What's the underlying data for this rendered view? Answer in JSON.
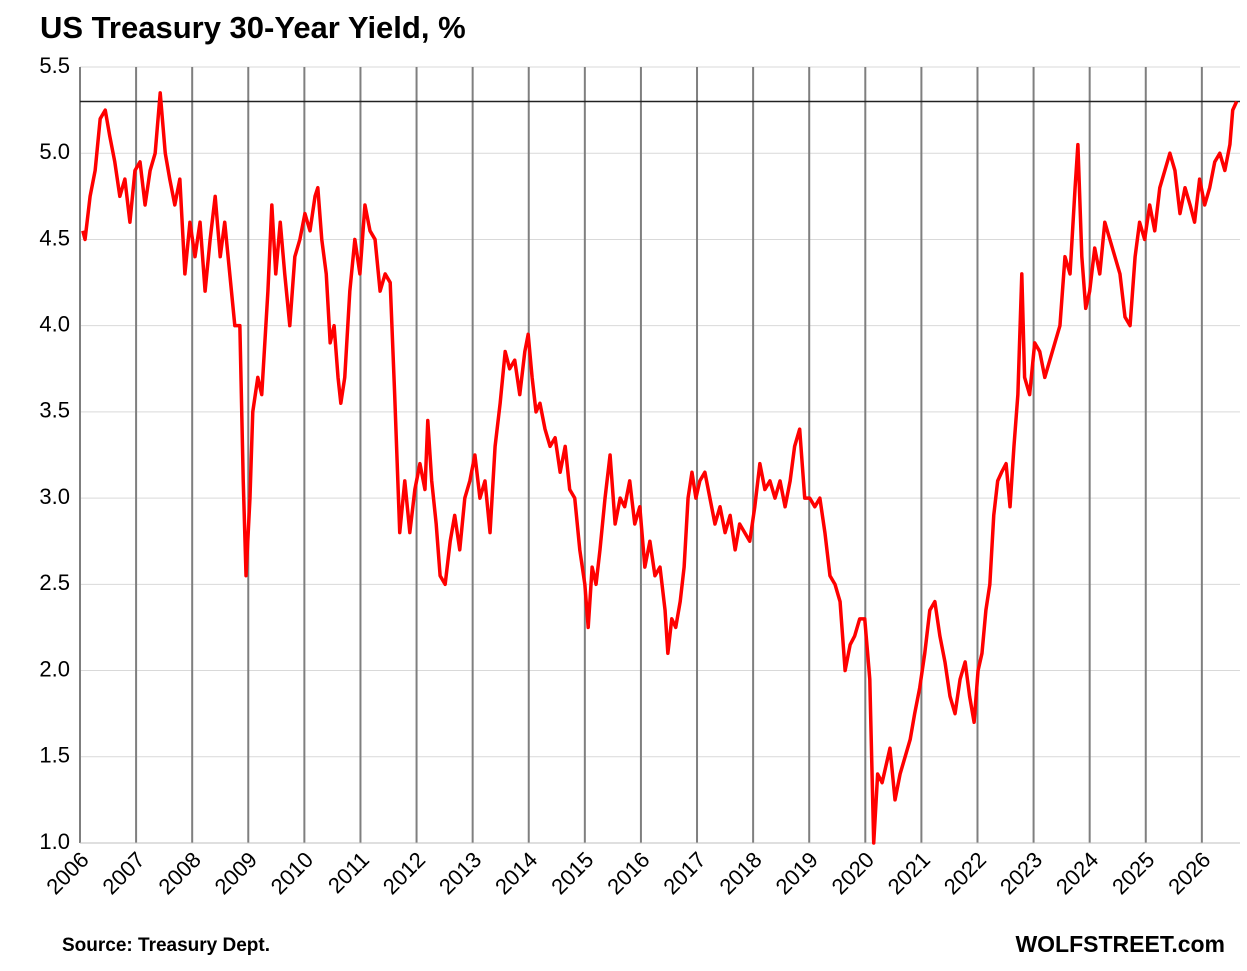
{
  "chart_data": {
    "type": "line",
    "title": "US Treasury 30-Year Yield, %",
    "source": "Source: Treasury Dept.",
    "watermark": "WOLFSTREET.com",
    "color": "#ff0000",
    "reference_line": 5.3,
    "reference_color": "#222222",
    "grid": true,
    "xlim": [
      2006,
      2026.68
    ],
    "xticks": [
      2006,
      2007,
      2008,
      2009,
      2010,
      2011,
      2012,
      2013,
      2014,
      2015,
      2016,
      2017,
      2018,
      2019,
      2020,
      2021,
      2022,
      2023,
      2024,
      2025,
      2026
    ],
    "ylim": [
      1,
      5.5
    ],
    "yticks": [
      {
        "value": 1,
        "label": "1.0"
      },
      {
        "value": 1.5,
        "label": "1.5"
      },
      {
        "value": 2,
        "label": "2.0"
      },
      {
        "value": 2.5,
        "label": "2.5"
      },
      {
        "value": 3,
        "label": "3.0"
      },
      {
        "value": 3.5,
        "label": "3.5"
      },
      {
        "value": 4,
        "label": "4.0"
      },
      {
        "value": 4.5,
        "label": "4.5"
      },
      {
        "value": 5,
        "label": "5.0"
      },
      {
        "value": 5.5,
        "label": "5.5"
      }
    ],
    "x": [
      2006.05,
      2006.09,
      2006.18,
      2006.27,
      2006.36,
      2006.45,
      2006.53,
      2006.62,
      2006.71,
      2006.8,
      2006.89,
      2006.98,
      2007.07,
      2007.16,
      2007.25,
      2007.34,
      2007.43,
      2007.52,
      2007.6,
      2007.69,
      2007.78,
      2007.87,
      2007.96,
      2008.05,
      2008.14,
      2008.23,
      2008.32,
      2008.41,
      2008.5,
      2008.58,
      2008.67,
      2008.76,
      2008.85,
      2008.91,
      2008.96,
      2009.03,
      2009.08,
      2009.17,
      2009.24,
      2009.35,
      2009.42,
      2009.49,
      2009.57,
      2009.65,
      2009.74,
      2009.83,
      2009.92,
      2010.01,
      2010.1,
      2010.19,
      2010.24,
      2010.31,
      2010.39,
      2010.46,
      2010.53,
      2010.6,
      2010.65,
      2010.72,
      2010.81,
      2010.9,
      2010.99,
      2011.08,
      2011.17,
      2011.26,
      2011.35,
      2011.44,
      2011.53,
      2011.61,
      2011.7,
      2011.79,
      2011.88,
      2011.97,
      2012.06,
      2012.15,
      2012.2,
      2012.27,
      2012.35,
      2012.42,
      2012.51,
      2012.6,
      2012.68,
      2012.77,
      2012.86,
      2012.95,
      2013.04,
      2013.13,
      2013.22,
      2013.31,
      2013.4,
      2013.49,
      2013.58,
      2013.66,
      2013.75,
      2013.84,
      2013.93,
      2013.99,
      2014.06,
      2014.13,
      2014.2,
      2014.29,
      2014.38,
      2014.47,
      2014.56,
      2014.65,
      2014.73,
      2014.82,
      2014.91,
      2015,
      2015.06,
      2015.13,
      2015.2,
      2015.27,
      2015.36,
      2015.45,
      2015.54,
      2015.63,
      2015.71,
      2015.8,
      2015.89,
      2015.98,
      2016.07,
      2016.16,
      2016.25,
      2016.34,
      2016.43,
      2016.48,
      2016.55,
      2016.62,
      2016.7,
      2016.77,
      2016.84,
      2016.91,
      2016.98,
      2017.05,
      2017.14,
      2017.23,
      2017.32,
      2017.41,
      2017.5,
      2017.59,
      2017.68,
      2017.76,
      2017.85,
      2017.94,
      2018.03,
      2018.12,
      2018.21,
      2018.3,
      2018.39,
      2018.48,
      2018.57,
      2018.66,
      2018.74,
      2018.83,
      2018.92,
      2019.01,
      2019.1,
      2019.19,
      2019.28,
      2019.37,
      2019.46,
      2019.55,
      2019.64,
      2019.73,
      2019.81,
      2019.9,
      2019.99,
      2020.08,
      2020.15,
      2020.22,
      2020.3,
      2020.37,
      2020.44,
      2020.53,
      2020.62,
      2020.71,
      2020.8,
      2020.88,
      2020.97,
      2021.06,
      2021.15,
      2021.24,
      2021.33,
      2021.42,
      2021.51,
      2021.6,
      2021.69,
      2021.78,
      2021.86,
      2021.94,
      2022.01,
      2022.08,
      2022.15,
      2022.22,
      2022.29,
      2022.36,
      2022.43,
      2022.51,
      2022.58,
      2022.65,
      2022.72,
      2022.79,
      2022.84,
      2022.93,
      2023.02,
      2023.11,
      2023.2,
      2023.29,
      2023.38,
      2023.47,
      2023.56,
      2023.65,
      2023.74,
      2023.79,
      2023.86,
      2023.93,
      2024,
      2024.09,
      2024.18,
      2024.27,
      2024.36,
      2024.45,
      2024.54,
      2024.63,
      2024.72,
      2024.81,
      2024.89,
      2024.98,
      2025.07,
      2025.16,
      2025.25,
      2025.34,
      2025.43,
      2025.52,
      2025.61,
      2025.7,
      2025.79,
      2025.87,
      2025.96,
      2026.05,
      2026.14,
      2026.23,
      2026.32,
      2026.41,
      2026.5,
      2026.55,
      2026.62
    ],
    "values": [
      4.55,
      4.5,
      4.75,
      4.9,
      5.2,
      5.25,
      5.1,
      4.95,
      4.75,
      4.85,
      4.6,
      4.9,
      4.95,
      4.7,
      4.9,
      5.0,
      5.35,
      5.0,
      4.85,
      4.7,
      4.85,
      4.3,
      4.6,
      4.4,
      4.6,
      4.2,
      4.5,
      4.75,
      4.4,
      4.6,
      4.3,
      4.0,
      4.0,
      3.1,
      2.55,
      3.0,
      3.5,
      3.7,
      3.6,
      4.2,
      4.7,
      4.3,
      4.6,
      4.3,
      4.0,
      4.4,
      4.5,
      4.65,
      4.55,
      4.75,
      4.8,
      4.5,
      4.3,
      3.9,
      4.0,
      3.7,
      3.55,
      3.7,
      4.2,
      4.5,
      4.3,
      4.7,
      4.55,
      4.5,
      4.2,
      4.3,
      4.25,
      3.6,
      2.8,
      3.1,
      2.8,
      3.05,
      3.2,
      3.05,
      3.45,
      3.1,
      2.85,
      2.55,
      2.5,
      2.75,
      2.9,
      2.7,
      3.0,
      3.1,
      3.25,
      3.0,
      3.1,
      2.8,
      3.3,
      3.55,
      3.85,
      3.75,
      3.8,
      3.6,
      3.85,
      3.95,
      3.7,
      3.5,
      3.55,
      3.4,
      3.3,
      3.35,
      3.15,
      3.3,
      3.05,
      3.0,
      2.7,
      2.5,
      2.25,
      2.6,
      2.5,
      2.7,
      3.0,
      3.25,
      2.85,
      3.0,
      2.95,
      3.1,
      2.85,
      2.95,
      2.6,
      2.75,
      2.55,
      2.6,
      2.35,
      2.1,
      2.3,
      2.25,
      2.4,
      2.6,
      3.0,
      3.15,
      3.0,
      3.1,
      3.15,
      3.0,
      2.85,
      2.95,
      2.8,
      2.9,
      2.7,
      2.85,
      2.8,
      2.75,
      2.95,
      3.2,
      3.05,
      3.1,
      3.0,
      3.1,
      2.95,
      3.1,
      3.3,
      3.4,
      3.0,
      3.0,
      2.95,
      3.0,
      2.8,
      2.55,
      2.5,
      2.4,
      2.0,
      2.15,
      2.2,
      2.3,
      2.3,
      1.95,
      1.0,
      1.4,
      1.35,
      1.45,
      1.55,
      1.25,
      1.4,
      1.5,
      1.6,
      1.75,
      1.9,
      2.1,
      2.35,
      2.4,
      2.2,
      2.05,
      1.85,
      1.75,
      1.95,
      2.05,
      1.85,
      1.7,
      2.0,
      2.1,
      2.35,
      2.5,
      2.9,
      3.1,
      3.15,
      3.2,
      2.95,
      3.3,
      3.6,
      4.3,
      3.7,
      3.6,
      3.9,
      3.85,
      3.7,
      3.8,
      3.9,
      4.0,
      4.4,
      4.3,
      4.8,
      5.05,
      4.4,
      4.1,
      4.2,
      4.45,
      4.3,
      4.6,
      4.5,
      4.4,
      4.3,
      4.05,
      4.0,
      4.4,
      4.6,
      4.5,
      4.7,
      4.55,
      4.8,
      4.9,
      5.0,
      4.9,
      4.65,
      4.8,
      4.7,
      4.6,
      4.85,
      4.7,
      4.8,
      4.95,
      5.0,
      4.9,
      5.05,
      5.25,
      5.3
    ]
  }
}
